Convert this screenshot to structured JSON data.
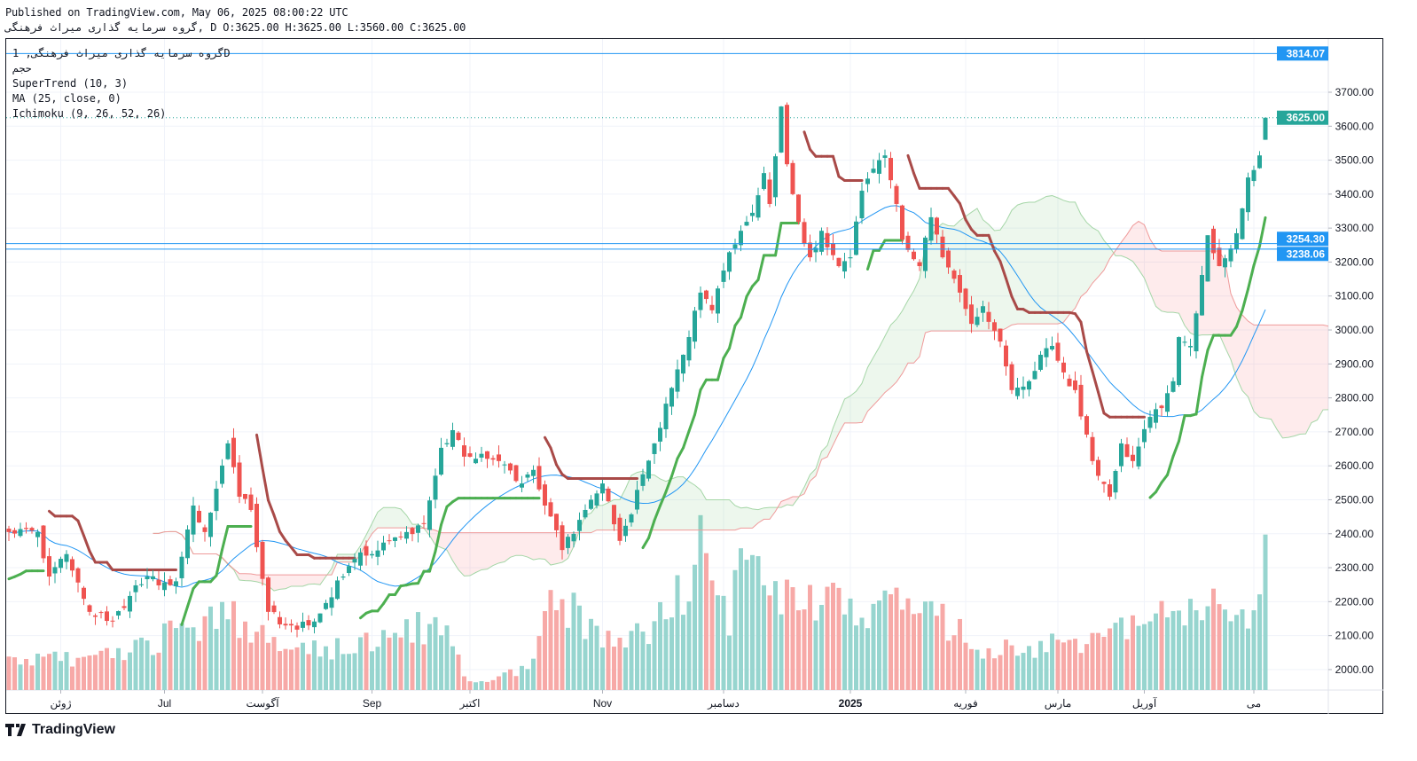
{
  "header": {
    "published": "Published on TradingView.com, May 06, 2025 08:00:22 UTC",
    "symbol_line": "گروه سرمایه گذاری میراث فرهنگی, D O:3625.00 H:3625.00 L:3560.00 C:3625.00"
  },
  "legend": {
    "symbol": "گروه سرمایه گذاری میراث فرهنگی, 1D",
    "volume": "حجم",
    "supertrend": "SuperTrend (10, 3)",
    "ma": "MA (25, close, 0)",
    "ichimoku": "Ichimoku (9, 26, 52, 26)"
  },
  "footer": {
    "brand": "TradingView"
  },
  "colors": {
    "up": "#26a69a",
    "down": "#ef5350",
    "vol_up": "#97d5cf",
    "vol_down": "#f7a9a7",
    "st_up": "#4caf50",
    "st_down": "#a94a48",
    "ma": "#2196f3",
    "hline": "#2196f3",
    "last": "#26a69a"
  },
  "chart_data": {
    "type": "candlestick",
    "title": "گروه سرمایه گذاری میراث فرهنگی, 1D",
    "bars": 219,
    "close_keypoints": [
      [
        0,
        2405
      ],
      [
        5,
        2405
      ],
      [
        7,
        2274
      ],
      [
        10,
        2340
      ],
      [
        14,
        2170
      ],
      [
        18,
        2144
      ],
      [
        22,
        2248
      ],
      [
        24,
        2274
      ],
      [
        26,
        2248
      ],
      [
        29,
        2260
      ],
      [
        32,
        2483
      ],
      [
        34,
        2405
      ],
      [
        38,
        2666
      ],
      [
        40,
        2509
      ],
      [
        42,
        2470
      ],
      [
        45,
        2170
      ],
      [
        48,
        2130
      ],
      [
        52,
        2130
      ],
      [
        55,
        2196
      ],
      [
        58,
        2274
      ],
      [
        60,
        2326
      ],
      [
        63,
        2340
      ],
      [
        66,
        2379
      ],
      [
        69,
        2405
      ],
      [
        72,
        2431
      ],
      [
        75,
        2653
      ],
      [
        77,
        2705
      ],
      [
        79,
        2627
      ],
      [
        85,
        2614
      ],
      [
        89,
        2548
      ],
      [
        91,
        2588
      ],
      [
        93,
        2483
      ],
      [
        96,
        2352
      ],
      [
        100,
        2470
      ],
      [
        103,
        2548
      ],
      [
        106,
        2379
      ],
      [
        108,
        2457
      ],
      [
        110,
        2575
      ],
      [
        112,
        2666
      ],
      [
        114,
        2783
      ],
      [
        117,
        2927
      ],
      [
        120,
        3110
      ],
      [
        122,
        3058
      ],
      [
        124,
        3175
      ],
      [
        127,
        3292
      ],
      [
        129,
        3345
      ],
      [
        131,
        3462
      ],
      [
        132,
        3371
      ],
      [
        134,
        3658
      ],
      [
        135,
        3488
      ],
      [
        137,
        3318
      ],
      [
        139,
        3214
      ],
      [
        141,
        3292
      ],
      [
        144,
        3188
      ],
      [
        146,
        3214
      ],
      [
        148,
        3410
      ],
      [
        150,
        3475
      ],
      [
        152,
        3514
      ],
      [
        154,
        3371
      ],
      [
        155,
        3266
      ],
      [
        158,
        3188
      ],
      [
        160,
        3332
      ],
      [
        162,
        3214
      ],
      [
        165,
        3110
      ],
      [
        167,
        3018
      ],
      [
        169,
        3070
      ],
      [
        172,
        2966
      ],
      [
        174,
        2823
      ],
      [
        177,
        2849
      ],
      [
        179,
        2927
      ],
      [
        181,
        2953
      ],
      [
        183,
        2875
      ],
      [
        185,
        2823
      ],
      [
        187,
        2692
      ],
      [
        188,
        2614
      ],
      [
        191,
        2509
      ],
      [
        193,
        2666
      ],
      [
        195,
        2614
      ],
      [
        198,
        2744
      ],
      [
        200,
        2770
      ],
      [
        202,
        2849
      ],
      [
        203,
        2979
      ],
      [
        205,
        2953
      ],
      [
        207,
        3162
      ],
      [
        208,
        3279
      ],
      [
        210,
        3188
      ],
      [
        212,
        3240
      ],
      [
        214,
        3358
      ],
      [
        215,
        3449
      ],
      [
        217,
        3514
      ],
      [
        218,
        3625
      ]
    ],
    "volume_relative_keypoints": [
      [
        0,
        0.2
      ],
      [
        20,
        0.25
      ],
      [
        38,
        0.6
      ],
      [
        45,
        0.35
      ],
      [
        60,
        0.3
      ],
      [
        75,
        0.5
      ],
      [
        80,
        0.05
      ],
      [
        90,
        0.15
      ],
      [
        95,
        0.7
      ],
      [
        105,
        0.3
      ],
      [
        115,
        0.6
      ],
      [
        120,
        1.0
      ],
      [
        125,
        0.55
      ],
      [
        128,
        1.0
      ],
      [
        135,
        0.7
      ],
      [
        145,
        0.6
      ],
      [
        150,
        0.65
      ],
      [
        160,
        0.55
      ],
      [
        170,
        0.3
      ],
      [
        185,
        0.35
      ],
      [
        195,
        0.45
      ],
      [
        205,
        0.6
      ],
      [
        212,
        0.65
      ],
      [
        215,
        0.45
      ],
      [
        218,
        0.95
      ]
    ],
    "last_bar": {
      "open": 3625.0,
      "high": 3625.0,
      "low": 3560.0,
      "close": 3625.0
    },
    "ylim": [
      1950,
      3850
    ],
    "y_ticks": [
      "2000.00",
      "2100.00",
      "2200.00",
      "2300.00",
      "2400.00",
      "2500.00",
      "2600.00",
      "2700.00",
      "2800.00",
      "2900.00",
      "3000.00",
      "3100.00",
      "3200.00",
      "3300.00",
      "3400.00",
      "3500.00",
      "3600.00",
      "3700.00"
    ],
    "x_ticks": [
      [
        9,
        "ژوئن"
      ],
      [
        27,
        "Jul"
      ],
      [
        44,
        "آگوست"
      ],
      [
        63,
        "Sep"
      ],
      [
        80,
        "اکتبر"
      ],
      [
        103,
        "Nov"
      ],
      [
        124,
        "دسامبر"
      ],
      [
        146,
        "2025"
      ],
      [
        166,
        "فوریه"
      ],
      [
        182,
        "مارس"
      ],
      [
        197,
        "آوریل"
      ],
      [
        216,
        "می"
      ]
    ],
    "price_lines": [
      {
        "value": 3814.07,
        "label": "3814.07",
        "style": "solid"
      },
      {
        "value": 3254.3,
        "label": "3254.30",
        "style": "solid"
      },
      {
        "value": 3238.06,
        "label": "3238.06",
        "style": "solid"
      },
      {
        "value": 3625.0,
        "label": "3625.00",
        "style": "last"
      }
    ],
    "indicators": {
      "supertrend": [
        10,
        3
      ],
      "ma": [
        25
      ],
      "ichimoku": [
        9,
        26,
        52,
        26
      ]
    }
  }
}
